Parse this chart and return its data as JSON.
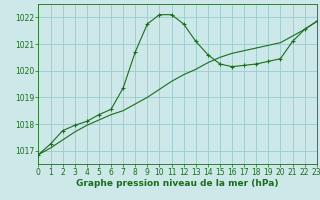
{
  "title": "Graphe pression niveau de la mer (hPa)",
  "bg_color": "#cce8e8",
  "grid_color": "#99cccc",
  "line_color": "#1a6e1a",
  "xlim": [
    0,
    23
  ],
  "ylim": [
    1016.5,
    1022.5
  ],
  "yticks": [
    1017,
    1018,
    1019,
    1020,
    1021,
    1022
  ],
  "xticks": [
    0,
    1,
    2,
    3,
    4,
    5,
    6,
    7,
    8,
    9,
    10,
    11,
    12,
    13,
    14,
    15,
    16,
    17,
    18,
    19,
    20,
    21,
    22,
    23
  ],
  "line1_x": [
    0,
    1,
    2,
    3,
    4,
    5,
    6,
    7,
    8,
    9,
    10,
    11,
    12,
    13,
    14,
    15,
    16,
    17,
    18,
    19,
    20,
    21,
    22,
    23
  ],
  "line1_y": [
    1016.85,
    1017.25,
    1017.75,
    1017.95,
    1018.1,
    1018.35,
    1018.55,
    1019.35,
    1020.7,
    1021.75,
    1022.1,
    1022.1,
    1021.75,
    1021.1,
    1020.6,
    1020.25,
    1020.15,
    1020.2,
    1020.25,
    1020.35,
    1020.45,
    1021.1,
    1021.55,
    1021.85
  ],
  "line2_x": [
    0,
    1,
    2,
    3,
    4,
    5,
    6,
    7,
    8,
    9,
    10,
    11,
    12,
    13,
    14,
    15,
    16,
    17,
    18,
    19,
    20,
    21,
    22,
    23
  ],
  "line2_y": [
    1016.85,
    1017.1,
    1017.4,
    1017.7,
    1017.95,
    1018.15,
    1018.35,
    1018.5,
    1018.75,
    1019.0,
    1019.3,
    1019.6,
    1019.85,
    1020.05,
    1020.3,
    1020.5,
    1020.65,
    1020.75,
    1020.85,
    1020.95,
    1021.05,
    1021.3,
    1021.55,
    1021.85
  ],
  "tick_fontsize": 5.5,
  "xlabel_fontsize": 6.5
}
